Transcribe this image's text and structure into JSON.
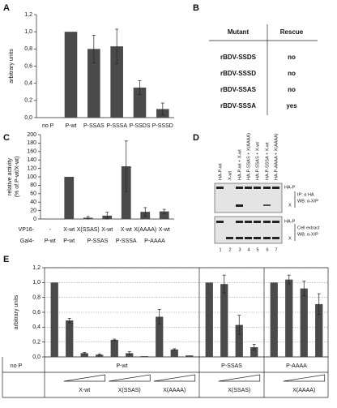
{
  "panel_labels": [
    "A",
    "B",
    "C",
    "D",
    "E"
  ],
  "chart_data": [
    {
      "type": "bar",
      "y_label": "arbitrary units",
      "categories": [
        "no P",
        "P-wt",
        "P-SSAS",
        "P-SSSA",
        "P-SSDS",
        "P-SSSD"
      ],
      "values": [
        0,
        1.0,
        0.8,
        0.83,
        0.35,
        0.1
      ],
      "errors": [
        null,
        null,
        0.16,
        0.2,
        0.08,
        0.07
      ],
      "color": "#4a4a4a",
      "grid": false,
      "ylim": [
        0,
        1.2
      ],
      "yticks": [
        {
          "value": 0,
          "label": "0,0"
        },
        {
          "value": 0.2,
          "label": "0,2"
        },
        {
          "value": 0.4,
          "label": "0,4"
        },
        {
          "value": 0.6,
          "label": "0,6"
        },
        {
          "value": 0.8,
          "label": "0,8"
        },
        {
          "value": 1.0,
          "label": "1,0"
        },
        {
          "value": 1.2,
          "label": "1,2"
        }
      ]
    },
    {
      "type": "grouped-bar",
      "y_label": [
        "relative activity",
        "(% of P-wt/X-wt)"
      ],
      "row_labels": [
        "VP16-",
        "Gal4-"
      ],
      "groups": [
        {
          "name": "P-wt",
          "categories": [
            "-"
          ],
          "values": [
            0
          ],
          "errors": [
            null
          ]
        },
        {
          "name": "P-wt",
          "categories": [
            "X-wt"
          ],
          "values": [
            100
          ],
          "errors": [
            null
          ]
        },
        {
          "name": "P-SSAS",
          "categories": [
            "X(SSAS)",
            "X-wt"
          ],
          "values": [
            3,
            8
          ],
          "errors": [
            3,
            8
          ]
        },
        {
          "name": "P-SSSA",
          "categories": [
            "X-wt"
          ],
          "values": [
            125
          ],
          "errors": [
            60
          ]
        },
        {
          "name": "P-AAAA",
          "categories": [
            "X(AAAA)",
            "X-wt"
          ],
          "values": [
            17,
            18
          ],
          "errors": [
            10,
            5
          ]
        }
      ],
      "color": "#4a4a4a",
      "grid": false,
      "ylim": [
        0,
        200
      ],
      "yticks": [
        0,
        20,
        40,
        60,
        80,
        100,
        120,
        140,
        160,
        180,
        200
      ]
    },
    {
      "type": "grouped-bar",
      "y_label": "arbitrary units",
      "groups": [
        {
          "name": "no P",
          "values": [
            0
          ],
          "errors": [
            null
          ]
        },
        {
          "name": "P-wt",
          "values": [
            1.0
          ],
          "errors": [
            null
          ],
          "subgroups": [
            {
              "name": "X-wt",
              "values": [
                0.49,
                0.05,
                0.03
              ],
              "errors": [
                0.03,
                0.01,
                0.01
              ]
            },
            {
              "name": "X(SSAS)",
              "values": [
                0.23,
                0.05,
                0.01
              ],
              "errors": [
                0.01,
                0.02,
                null
              ]
            },
            {
              "name": "X(AAAA)",
              "values": [
                0.54,
                0.1,
                0.02
              ],
              "errors": [
                0.1,
                0.01,
                null
              ]
            }
          ]
        },
        {
          "name": "P-SSAS",
          "values": [
            1.0
          ],
          "errors": [
            null
          ],
          "subgroups": [
            {
              "name": "X(SSAS)",
              "values": [
                0.98,
                0.43,
                0.13
              ],
              "errors": [
                0.12,
                0.13,
                0.04
              ]
            }
          ]
        },
        {
          "name": "P-AAAA",
          "values": [
            1.0
          ],
          "errors": [
            null
          ],
          "subgroups": [
            {
              "name": "X(AAAA)",
              "values": [
                1.04,
                0.92,
                0.71
              ],
              "errors": [
                0.06,
                0.1,
                0.14
              ]
            }
          ]
        }
      ],
      "color": "#4a4a4a",
      "grid": true,
      "ylim": [
        0,
        1.2
      ],
      "yticks": [
        {
          "value": 0,
          "label": "0,0"
        },
        {
          "value": 0.2,
          "label": "0,2"
        },
        {
          "value": 0.4,
          "label": "0,4"
        },
        {
          "value": 0.6,
          "label": "0,6"
        },
        {
          "value": 0.8,
          "label": "0,8"
        },
        {
          "value": 1.0,
          "label": "1,0"
        },
        {
          "value": 1.2,
          "label": "1,2"
        }
      ]
    }
  ],
  "table": {
    "header": [
      "Mutant",
      "Rescue"
    ],
    "rows": [
      [
        "rBDV-SSDS",
        "no"
      ],
      [
        "rBDV-SSSD",
        "no"
      ],
      [
        "rBDV-SSAS",
        "no"
      ],
      [
        "rBDV-SSSA",
        "yes"
      ]
    ]
  },
  "blot": {
    "lanes": [
      {
        "label": "HA-P-wt",
        "number": "1"
      },
      {
        "label": "X-wt",
        "number": "2"
      },
      {
        "label": "HA-P-wt + X-wt",
        "number": "3"
      },
      {
        "label": "HA-P-SSAS + X(AAAA)",
        "number": "4"
      },
      {
        "label": "HA-P-SSAS + X-wt",
        "number": "5"
      },
      {
        "label": "HA-P-SSSA + X-wt",
        "number": "6"
      },
      {
        "label": "HA-P-AAAA + X(AAAA)",
        "number": "7"
      }
    ],
    "panels": [
      {
        "bands": [
          "HA-P",
          "X"
        ],
        "caption": [
          "IP: α HA",
          "WB: α-X/P"
        ]
      },
      {
        "bands": [
          "HA-P",
          "X"
        ],
        "caption": [
          "Cell extract",
          "WB: α-X/P"
        ]
      }
    ]
  }
}
